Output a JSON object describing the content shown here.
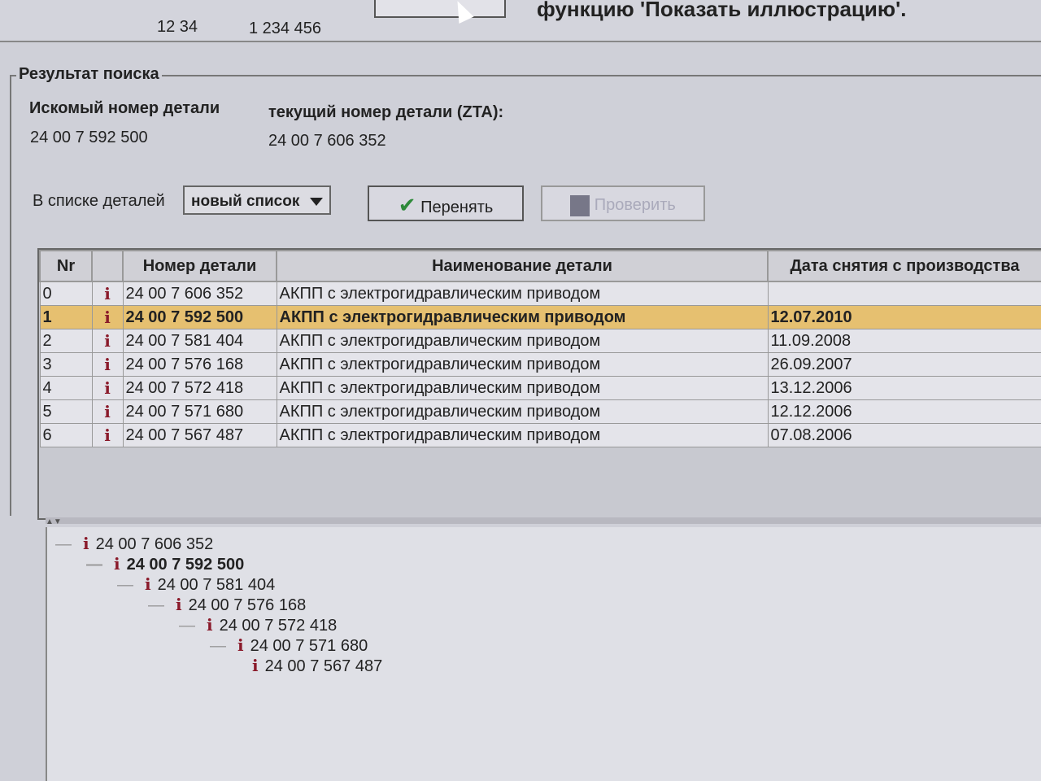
{
  "top": {
    "values": [
      "12 34",
      "1 234 456"
    ],
    "hint": "функцию 'Показать иллюстрацию'."
  },
  "search": {
    "legend": "Результат поиска",
    "searched_label": "Искомый номер детали",
    "searched_value": "24 00 7 592 500",
    "current_label": "текущий номер детали (ZTA):",
    "current_value": "24 00 7 606 352",
    "list_label": "В списке деталей",
    "list_value": "новый список",
    "apply_label": "Перенять",
    "check_label": "Проверить"
  },
  "table": {
    "headers": [
      "Nr",
      "",
      "Номер детали",
      "Наименование детали",
      "Дата снятия с производства"
    ],
    "selected_index": 1,
    "rows": [
      {
        "nr": "0",
        "part": "24 00 7 606 352",
        "name": "АКПП с электрогидравлическим приводом",
        "date": ""
      },
      {
        "nr": "1",
        "part": "24 00 7 592 500",
        "name": "АКПП с электрогидравлическим приводом",
        "date": "12.07.2010"
      },
      {
        "nr": "2",
        "part": "24 00 7 581 404",
        "name": "АКПП с электрогидравлическим приводом",
        "date": "11.09.2008"
      },
      {
        "nr": "3",
        "part": "24 00 7 576 168",
        "name": "АКПП с электрогидравлическим приводом",
        "date": "26.09.2007"
      },
      {
        "nr": "4",
        "part": "24 00 7 572 418",
        "name": "АКПП с электрогидравлическим приводом",
        "date": "13.12.2006"
      },
      {
        "nr": "5",
        "part": "24 00 7 571 680",
        "name": "АКПП с электрогидравлическим приводом",
        "date": "12.12.2006"
      },
      {
        "nr": "6",
        "part": "24 00 7 567 487",
        "name": "АКПП с электрогидравлическим приводом",
        "date": "07.08.2006"
      }
    ]
  },
  "tree": [
    "24 00 7 606 352",
    "24 00 7 592 500",
    "24 00 7 581 404",
    "24 00 7 576 168",
    "24 00 7 572 418",
    "24 00 7 571 680",
    "24 00 7 567 487"
  ],
  "icons": {
    "info": "i",
    "apply": "✔"
  },
  "colors": {
    "selected_row": "#e6c070",
    "info_icon": "#8a1a2a",
    "check": "#2e8a3a"
  }
}
